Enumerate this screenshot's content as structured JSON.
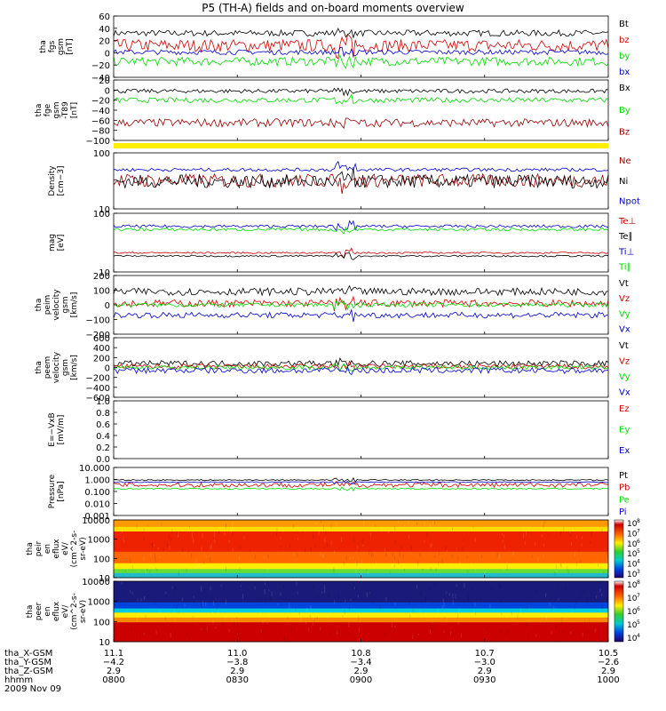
{
  "title": "P5 (TH-A) fields and on-board moments overview",
  "colors": {
    "black": "#000000",
    "red": "#d40000",
    "green": "#00dd00",
    "blue": "#0000cc",
    "darkred": "#9a0000",
    "yellow": "#ffee00"
  },
  "chart_data": [
    {
      "type": "line",
      "ylabel": [
        "tha",
        "fgs",
        "gsm",
        "[nT]"
      ],
      "yticks": [
        "60",
        "40",
        "20",
        "0",
        "−20",
        "−40"
      ],
      "ylim": [
        -40,
        60
      ],
      "series": [
        {
          "name": "Bt",
          "color": "black",
          "level": 32,
          "noise": 5
        },
        {
          "name": "bz",
          "color": "red",
          "level": 12,
          "noise": 10
        },
        {
          "name": "by",
          "color": "green",
          "level": -14,
          "noise": 7
        },
        {
          "name": "bx",
          "color": "blue",
          "level": 1,
          "noise": 4
        }
      ]
    },
    {
      "type": "line",
      "ylabel": [
        "tha",
        "fge",
        "gsm",
        "-T89",
        "[nT]"
      ],
      "yticks": [
        "20",
        "0",
        "−20",
        "−40",
        "−60",
        "−80",
        "−100"
      ],
      "ylim": [
        -100,
        20
      ],
      "series": [
        {
          "name": "Bx",
          "color": "black",
          "level": -2,
          "noise": 4
        },
        {
          "name": "By",
          "color": "green",
          "level": -20,
          "noise": 5
        },
        {
          "name": "Bz",
          "color": "darkred",
          "level": -65,
          "noise": 8
        }
      ]
    },
    {
      "type": "line",
      "ylabel": [
        "Density",
        "[cm−3]"
      ],
      "yticks": [
        "100",
        "10"
      ],
      "ylog": true,
      "ylim": [
        10,
        100
      ],
      "series": [
        {
          "name": "Ne",
          "color": "darkred",
          "level": 32,
          "noise": 0.12
        },
        {
          "name": "Ni",
          "color": "black",
          "level": 31,
          "noise": 0.12
        },
        {
          "name": "Npot",
          "color": "blue",
          "level": 50,
          "noise": 0.03
        }
      ]
    },
    {
      "type": "line",
      "ylabel": [
        "mag",
        "[eV]"
      ],
      "yticks": [
        "100",
        "10"
      ],
      "ylog": true,
      "ylim": [
        10,
        1000
      ],
      "series": [
        {
          "name": "Te⊥",
          "color": "red",
          "level": 45,
          "noise": 0.03
        },
        {
          "name": "Te∥",
          "color": "black",
          "level": 35,
          "noise": 0.03
        },
        {
          "name": "Ti⊥",
          "color": "blue",
          "level": 360,
          "noise": 0.05
        },
        {
          "name": "Ti∥",
          "color": "green",
          "level": 280,
          "noise": 0.05
        }
      ]
    },
    {
      "type": "line",
      "ylabel": [
        "tha",
        "peim",
        "velocity",
        "gsm",
        "[km/s]"
      ],
      "yticks": [
        "200",
        "100",
        "0",
        "−100",
        "−200"
      ],
      "ylim": [
        -200,
        200
      ],
      "series": [
        {
          "name": "Vt",
          "color": "black",
          "level": 90,
          "noise": 25
        },
        {
          "name": "Vz",
          "color": "red",
          "level": 10,
          "noise": 25
        },
        {
          "name": "Vy",
          "color": "green",
          "level": 0,
          "noise": 15
        },
        {
          "name": "Vx",
          "color": "blue",
          "level": -70,
          "noise": 20
        }
      ]
    },
    {
      "type": "line",
      "ylabel": [
        "tha",
        "peem",
        "velocity",
        "gsm",
        "[km/s]"
      ],
      "yticks": [
        "600",
        "400",
        "200",
        "0",
        "−200",
        "−400",
        "−600"
      ],
      "ylim": [
        -600,
        600
      ],
      "series": [
        {
          "name": "Vt",
          "color": "black",
          "level": 80,
          "noise": 60
        },
        {
          "name": "Vz",
          "color": "red",
          "level": 20,
          "noise": 50
        },
        {
          "name": "Vy",
          "color": "green",
          "level": 0,
          "noise": 40
        },
        {
          "name": "Vx",
          "color": "blue",
          "level": -60,
          "noise": 60
        }
      ]
    },
    {
      "type": "line",
      "ylabel": [
        "E=−VxB",
        "[mV/m]"
      ],
      "yticks": [
        "1.0",
        "0.8",
        "0.6",
        "0.4",
        "0.2",
        "0.0"
      ],
      "ylim": [
        0,
        1
      ],
      "series": [
        {
          "name": "Ez",
          "color": "red"
        },
        {
          "name": "Ey",
          "color": "green"
        },
        {
          "name": "Ex",
          "color": "blue"
        }
      ]
    },
    {
      "type": "line",
      "ylabel": [
        "Pressure",
        "[nPa]"
      ],
      "yticks": [
        "10.000",
        "1.000",
        "0.100",
        "0.010",
        "0.001"
      ],
      "ylog": true,
      "ylim": [
        0.001,
        10
      ],
      "series": [
        {
          "name": "Pt",
          "color": "black",
          "level": 0.9,
          "noise": 0.05
        },
        {
          "name": "Pb",
          "color": "red",
          "level": 0.35,
          "noise": 0.2
        },
        {
          "name": "Pe",
          "color": "green",
          "level": 0.17,
          "noise": 0.05
        },
        {
          "name": "Pi",
          "color": "blue",
          "level": 0.6,
          "noise": 0.04
        }
      ]
    },
    {
      "type": "heatmap",
      "ylabel": [
        "tha",
        "peir",
        "en",
        "eflux",
        "eV/",
        "(cm^2-s-",
        "sr-eV)"
      ],
      "yticks": [
        "10000",
        "1000",
        "100",
        "10"
      ],
      "ylog": true,
      "ylim": [
        10,
        15000
      ],
      "colorbar": {
        "ticks": [
          "10",
          "10",
          "10",
          "10",
          "10",
          "10"
        ],
        "exps": [
          "8",
          "7",
          "6",
          "5",
          "4",
          "3"
        ]
      }
    },
    {
      "type": "heatmap",
      "ylabel": [
        "tha",
        "peer",
        "en",
        "eflux",
        "eV/",
        "(cm^2-s-",
        "sr-eV)"
      ],
      "yticks": [
        "10000",
        "1000",
        "100",
        "10"
      ],
      "ylog": true,
      "ylim": [
        10,
        15000
      ],
      "colorbar": {
        "ticks": [
          "10",
          "10",
          "10",
          "10",
          "10"
        ],
        "exps": [
          "8",
          "7",
          "6",
          "5",
          "4"
        ]
      }
    }
  ],
  "xaxis": {
    "rows": [
      {
        "label": "tha_X-GSM",
        "values": [
          "11.1",
          "11.0",
          "10.8",
          "10.7",
          "10.5"
        ]
      },
      {
        "label": "tha_Y-GSM",
        "values": [
          "−4.2",
          "−3.8",
          "−3.4",
          "−3.0",
          "−2.6"
        ]
      },
      {
        "label": "tha_Z-GSM",
        "values": [
          "2.9",
          "2.9",
          "2.9",
          "2.9",
          "2.9"
        ]
      },
      {
        "label": "hhmm",
        "values": [
          "0800",
          "0830",
          "0900",
          "0930",
          "1000"
        ]
      }
    ],
    "date": "2009 Nov 09"
  }
}
